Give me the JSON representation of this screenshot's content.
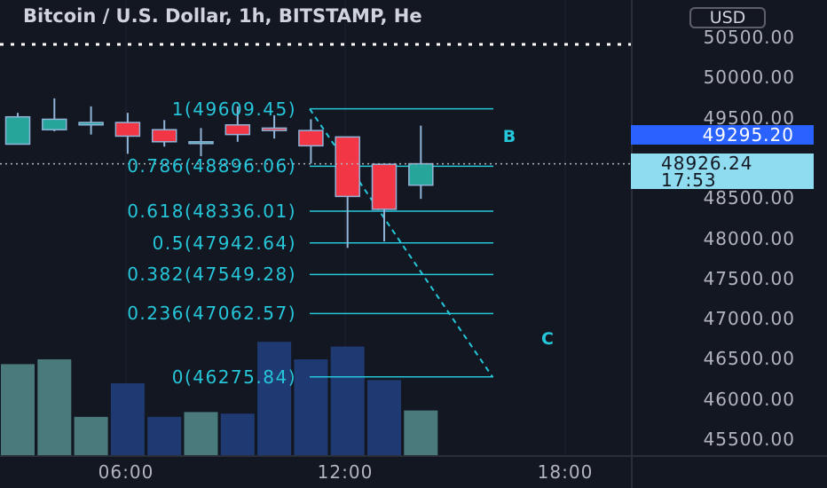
{
  "header": {
    "title": "Bitcoin / U.S. Dollar, 1h, BITSTAMP, He",
    "currency": "USD"
  },
  "price_axis": {
    "labels": [
      "50500.00",
      "50000.00",
      "49500.00",
      "48500.00",
      "48000.00",
      "47500.00",
      "47000.00",
      "46500.00",
      "46000.00",
      "45500.00"
    ],
    "current_price_tag": "49295.20",
    "last_price_tag": "48926.24",
    "countdown": "17:53"
  },
  "time_axis": {
    "labels": [
      "06:00",
      "12:00",
      "18:00"
    ]
  },
  "fibonacci": {
    "levels": [
      {
        "ratio": "1",
        "price": 49609.45,
        "label": "1(49609.45)"
      },
      {
        "ratio": "0.786",
        "price": 48896.06,
        "label": "0.786(48896.06)"
      },
      {
        "ratio": "0.618",
        "price": 48336.01,
        "label": "0.618(48336.01)"
      },
      {
        "ratio": "0.5",
        "price": 47942.64,
        "label": "0.5(47942.64)"
      },
      {
        "ratio": "0.382",
        "price": 47549.28,
        "label": "0.382(47549.28)"
      },
      {
        "ratio": "0.236",
        "price": 47062.57,
        "label": "0.236(47062.57)"
      },
      {
        "ratio": "0",
        "price": 46275.84,
        "label": "0(46275.84)"
      }
    ]
  },
  "annotations": {
    "wave_b": "B",
    "wave_c": "C"
  },
  "chart_data": {
    "type": "candlestick",
    "title": "Bitcoin / U.S. Dollar, 1h, BITSTAMP, He",
    "ylim": [
      45300,
      50900
    ],
    "x_labels": [
      "06:00",
      "12:00",
      "18:00"
    ],
    "colors": {
      "up": "#26a69a",
      "down": "#f23645",
      "volume_up": "#4a7a7c",
      "volume_down": "#1f3a72",
      "fib": "#26c6da",
      "background": "#131722"
    },
    "candles": [
      {
        "open": 49170,
        "high": 49560,
        "low": 49170,
        "close": 49510
      },
      {
        "open": 49350,
        "high": 49740,
        "low": 49330,
        "close": 49480
      },
      {
        "open": 49410,
        "high": 49640,
        "low": 49290,
        "close": 49440
      },
      {
        "open": 49440,
        "high": 49560,
        "low": 49050,
        "close": 49270
      },
      {
        "open": 49350,
        "high": 49470,
        "low": 49140,
        "close": 49200
      },
      {
        "open": 49200,
        "high": 49370,
        "low": 49020,
        "close": 49200
      },
      {
        "open": 49410,
        "high": 49640,
        "low": 49200,
        "close": 49290
      },
      {
        "open": 49370,
        "high": 49530,
        "low": 49240,
        "close": 49340
      },
      {
        "open": 49340,
        "high": 49480,
        "low": 48930,
        "close": 49150
      },
      {
        "open": 49260,
        "high": 49260,
        "low": 47880,
        "close": 48520
      },
      {
        "open": 48920,
        "high": 48920,
        "low": 47960,
        "close": 48360
      },
      {
        "open": 48660,
        "high": 49400,
        "low": 48490,
        "close": 48926.24
      }
    ],
    "volume": [
      0.57,
      0.6,
      0.24,
      0.45,
      0.24,
      0.27,
      0.26,
      0.71,
      0.6,
      0.68,
      0.47,
      0.28
    ]
  }
}
